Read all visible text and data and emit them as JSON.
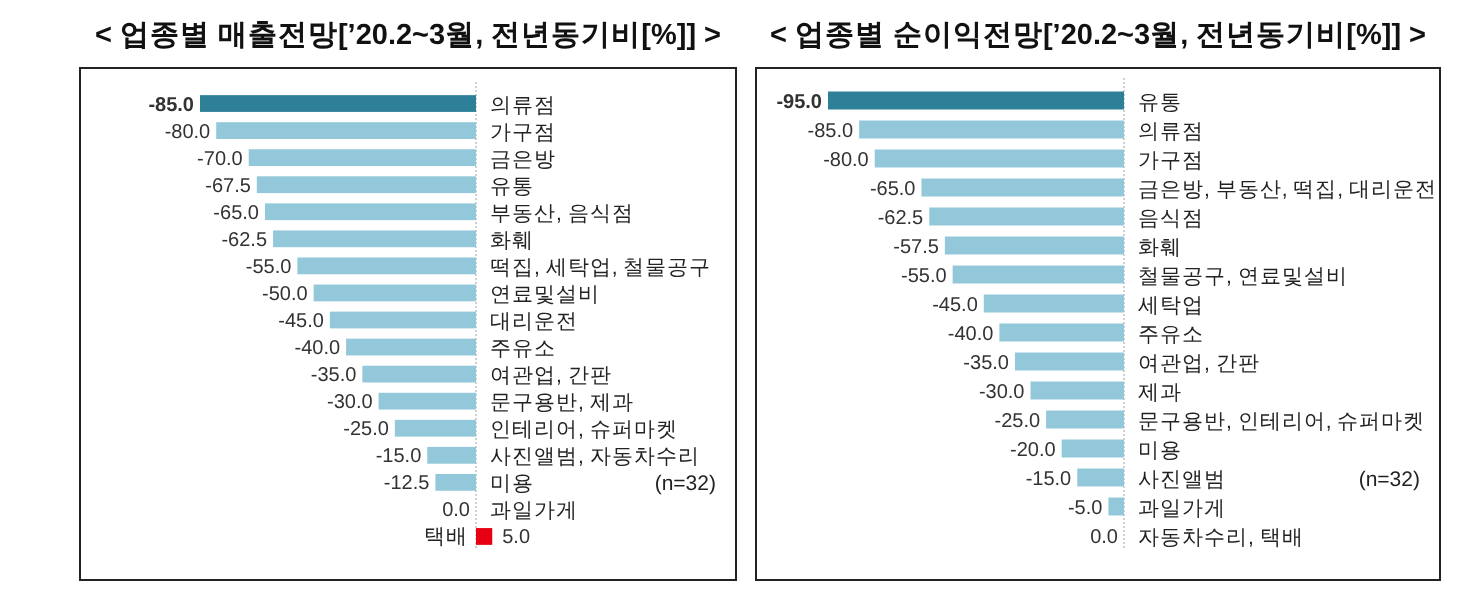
{
  "chart_data": [
    {
      "type": "bar",
      "orientation": "horizontal",
      "title": "< 업종별 매출전망[’20.2~3월, 전년동기비[%]] >",
      "categories": [
        "의류점",
        "가구점",
        "금은방",
        "유통",
        "부동산, 음식점",
        "화훼",
        "떡집, 세탁업, 철물공구",
        "연료및설비",
        "대리운전",
        "주유소",
        "여관업, 간판",
        "문구용반, 제과",
        "인테리어, 슈퍼마켓",
        "사진앨범, 자동차수리",
        "미용",
        "과일가게",
        "택배"
      ],
      "values": [
        -85.0,
        -80.0,
        -70.0,
        -67.5,
        -65.0,
        -62.5,
        -55.0,
        -50.0,
        -45.0,
        -40.0,
        -35.0,
        -30.0,
        -25.0,
        -15.0,
        -12.5,
        0.0,
        5.0
      ],
      "colors": [
        "#2e7f98",
        "#92c8d9",
        "#92c8d9",
        "#92c8d9",
        "#92c8d9",
        "#92c8d9",
        "#92c8d9",
        "#92c8d9",
        "#92c8d9",
        "#92c8d9",
        "#92c8d9",
        "#92c8d9",
        "#92c8d9",
        "#92c8d9",
        "#92c8d9",
        "#92c8d9",
        "#e60012"
      ],
      "value_labels": [
        "-85.0",
        "-80.0",
        "-70.0",
        "-67.5",
        "-65.0",
        "-62.5",
        "-55.0",
        "-50.0",
        "-45.0",
        "-40.0",
        "-35.0",
        "-30.0",
        "-25.0",
        "-15.0",
        "-12.5",
        "0.0",
        "5.0"
      ],
      "annotations": [
        "(n=32)"
      ],
      "ref_lines": [
        {
          "axis": "x",
          "value": 0,
          "color": "#d0d0d0",
          "line_style": "dotted"
        }
      ]
    },
    {
      "type": "bar",
      "orientation": "horizontal",
      "title": "< 업종별 순이익전망[’20.2~3월, 전년동기비[%]] >",
      "categories": [
        "유통",
        "의류점",
        "가구점",
        "금은방, 부동산, 떡집, 대리운전",
        "음식점",
        "화훼",
        "철물공구, 연료및설비",
        "세탁업",
        "주유소",
        "여관업, 간판",
        "제과",
        "문구용반, 인테리어, 슈퍼마켓",
        "미용",
        "사진앨범",
        "과일가게",
        "자동차수리, 택배"
      ],
      "values": [
        -95.0,
        -85.0,
        -80.0,
        -65.0,
        -62.5,
        -57.5,
        -55.0,
        -45.0,
        -40.0,
        -35.0,
        -30.0,
        -25.0,
        -20.0,
        -15.0,
        -5.0,
        0.0
      ],
      "colors": [
        "#2e7f98",
        "#92c8d9",
        "#92c8d9",
        "#92c8d9",
        "#92c8d9",
        "#92c8d9",
        "#92c8d9",
        "#92c8d9",
        "#92c8d9",
        "#92c8d9",
        "#92c8d9",
        "#92c8d9",
        "#92c8d9",
        "#92c8d9",
        "#92c8d9",
        "#92c8d9"
      ],
      "value_labels": [
        "-95.0",
        "-85.0",
        "-80.0",
        "-65.0",
        "-62.5",
        "-57.5",
        "-55.0",
        "-45.0",
        "-40.0",
        "-35.0",
        "-30.0",
        "-25.0",
        "-20.0",
        "-15.0",
        "-5.0",
        "0.0"
      ],
      "annotations": [
        "(n=32)"
      ],
      "ref_lines": [
        {
          "axis": "x",
          "value": 0,
          "color": "#d0d0d0",
          "line_style": "dotted"
        }
      ]
    }
  ]
}
